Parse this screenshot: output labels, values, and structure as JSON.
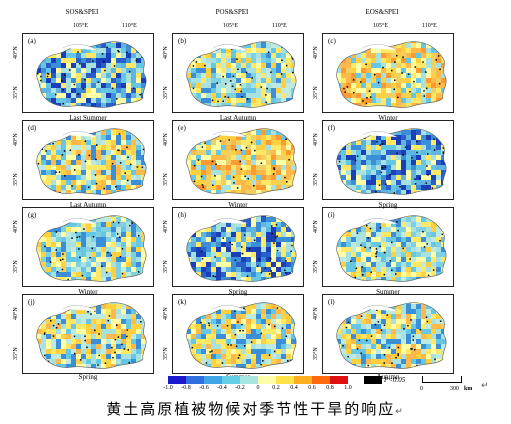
{
  "columns": [
    "SOS&SPEI",
    "POS&SPEI",
    "EOS&SPEI"
  ],
  "lon_ticks": [
    "105°E",
    "110°E"
  ],
  "lat_ticks": [
    "40°N",
    "35°N"
  ],
  "panels": [
    {
      "label": "(a)",
      "scheme": "blue"
    },
    {
      "label": "(b)",
      "scheme": "cyan"
    },
    {
      "label": "(c)",
      "scheme": "yellow"
    },
    {
      "label": "(d)",
      "scheme": "mixed"
    },
    {
      "label": "(e)",
      "scheme": "yellow"
    },
    {
      "label": "(f)",
      "scheme": "blue"
    },
    {
      "label": "(g)",
      "scheme": "cyan"
    },
    {
      "label": "(h)",
      "scheme": "blue"
    },
    {
      "label": "(i)",
      "scheme": "cyan"
    },
    {
      "label": "(j)",
      "scheme": "mixed"
    },
    {
      "label": "(k)",
      "scheme": "mixed"
    },
    {
      "label": "(l)",
      "scheme": "mixed"
    }
  ],
  "season_labels": [
    [
      "Last Summer",
      "Last Autumn",
      "Winter"
    ],
    [
      "Last Autumn",
      "Winter",
      "Spring"
    ],
    [
      "Winter",
      "Spring",
      "Summer"
    ],
    [
      "Spring",
      "Summer",
      "Autumn"
    ]
  ],
  "legend": {
    "ticks": [
      "-1.0",
      "-0.8",
      "-0.6",
      "-0.4",
      "-0.2",
      "0",
      "0.2",
      "0.4",
      "0.6",
      "0.8",
      "1.0"
    ],
    "colors": [
      "#1a1acc",
      "#2f6fe0",
      "#3fa6e8",
      "#66cfe8",
      "#a8e6e0",
      "#ffffa8",
      "#ffe34a",
      "#ffb020",
      "#ff6a10",
      "#e01010"
    ],
    "sig_color": "#000000",
    "sig_label": "P<0.05"
  },
  "scalebar": {
    "zero": "0",
    "distance": "300",
    "unit": "km"
  },
  "caption": "黄土高原植被物候对季节性干旱的响应",
  "return_marks": [
    "↵",
    "↵"
  ]
}
